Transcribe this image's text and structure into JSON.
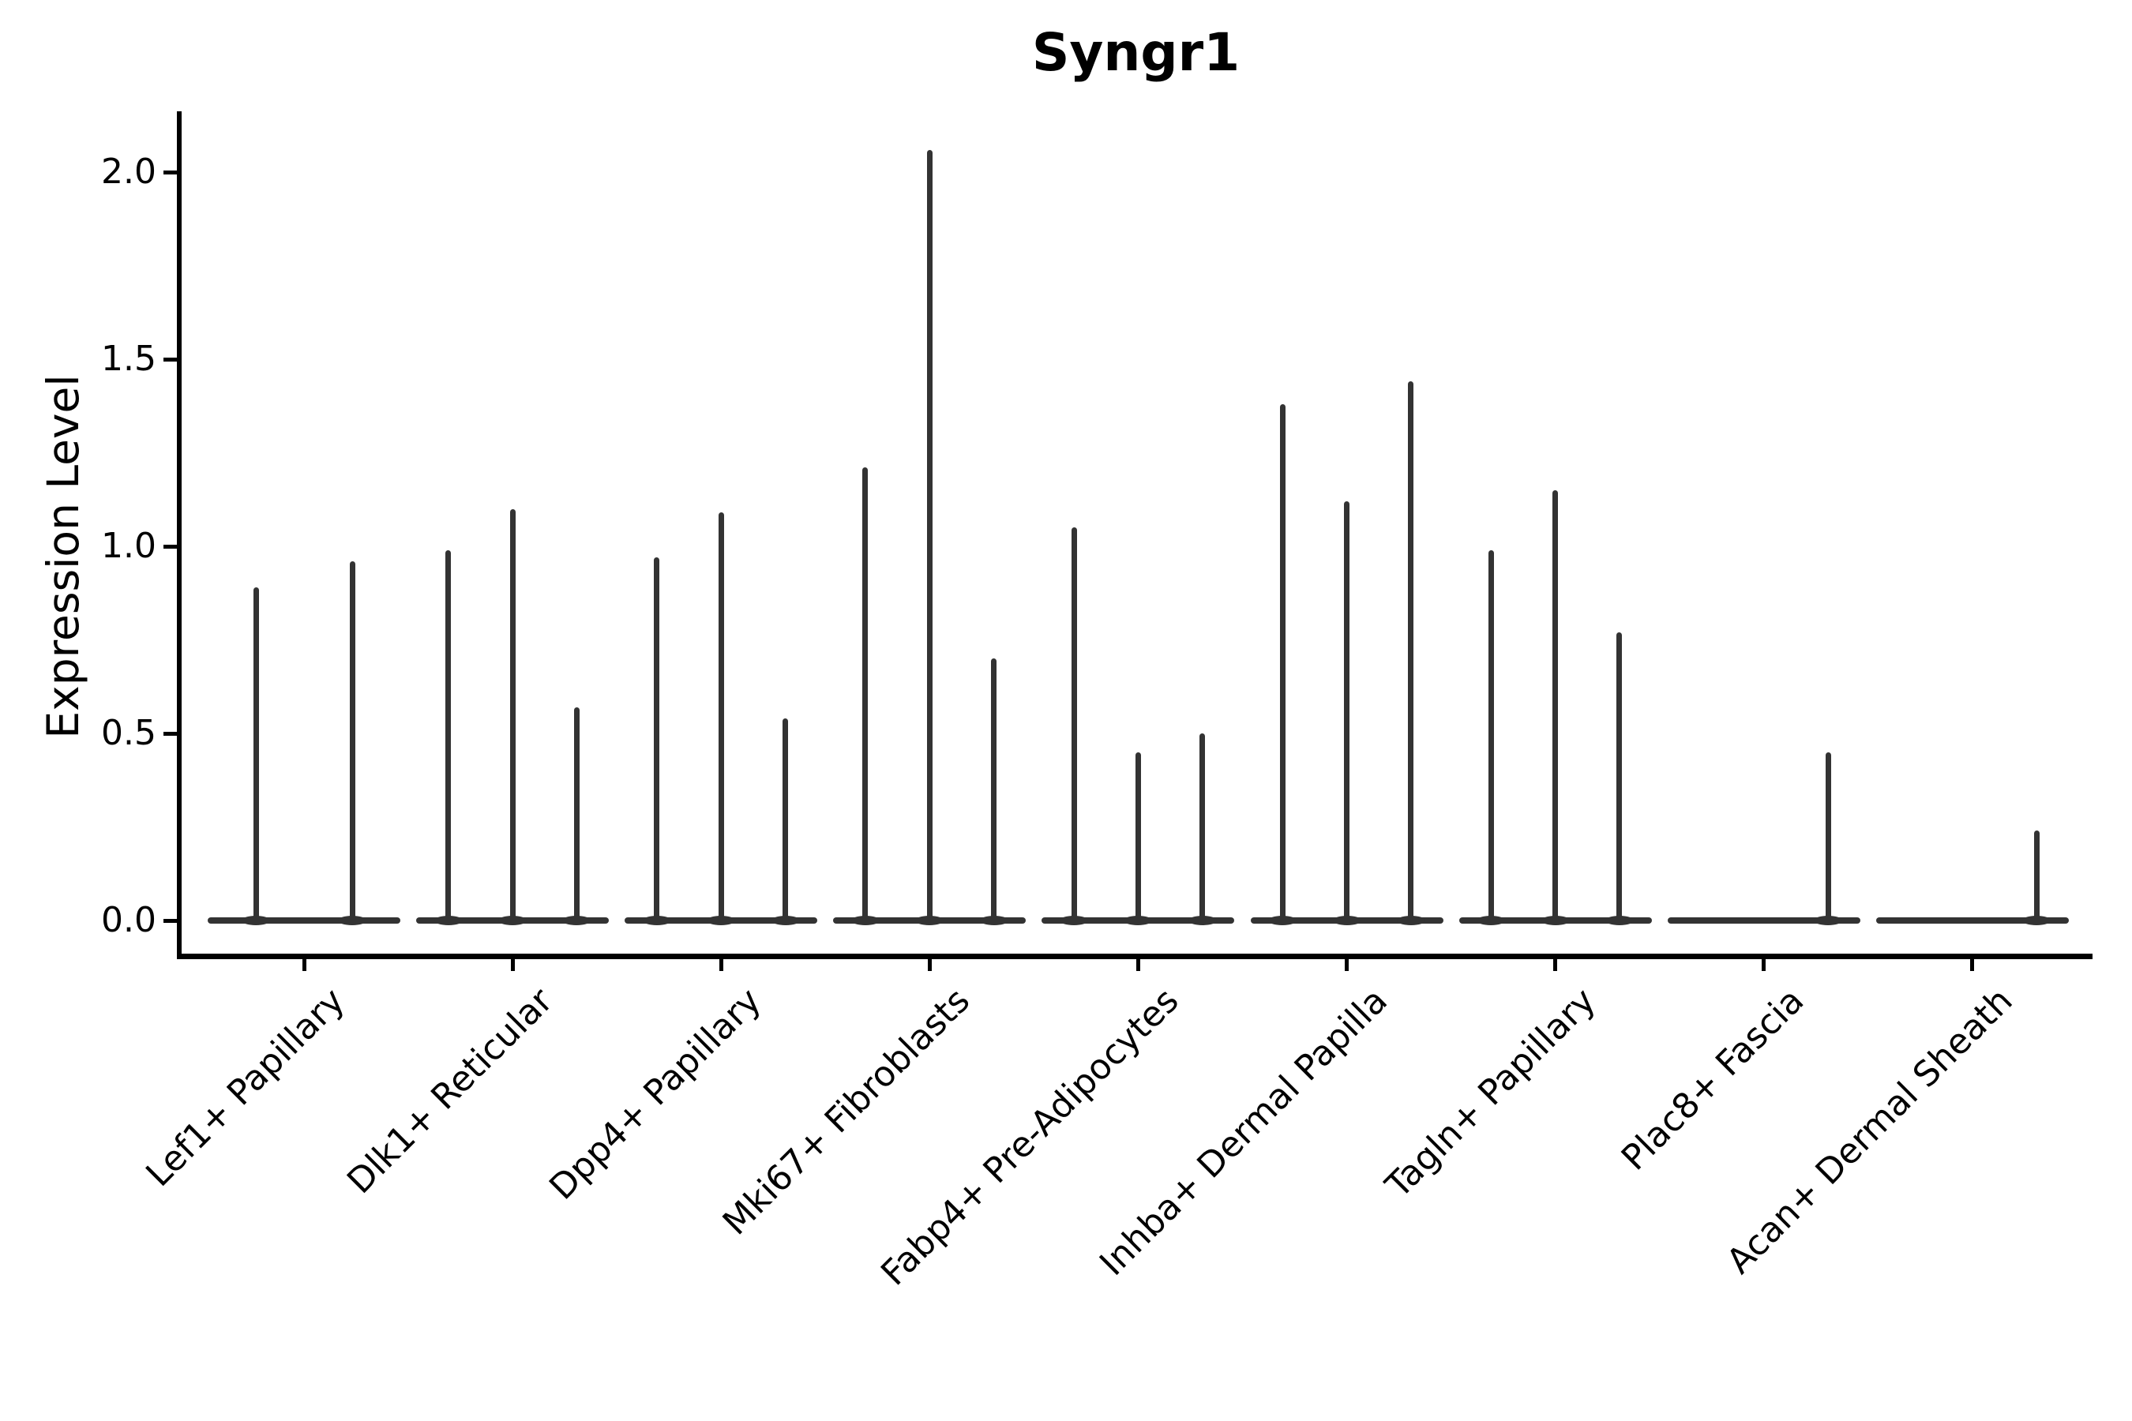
{
  "title": "Syngr1",
  "y_axis": {
    "label": "Expression Level",
    "tick_labels": [
      "2.0",
      "1.5",
      "1.0",
      "0.5",
      "0.0"
    ],
    "tick_values": [
      2.0,
      1.5,
      1.0,
      0.5,
      0.0
    ]
  },
  "colors": {
    "violin": "#333333",
    "axis": "#000000",
    "text": "#000000",
    "background": "#ffffff"
  },
  "chart_data": {
    "type": "violin",
    "title": "Syngr1",
    "xlabel": "",
    "ylabel": "Expression Level",
    "ylim": [
      0,
      2.16
    ],
    "yticks": [
      0.0,
      0.5,
      1.0,
      1.5,
      2.0
    ],
    "grid": false,
    "legend": false,
    "note": "Collapsed violins: nearly all density at 0 (horizontal baseline per group) with thin spikes reaching each violin's maximum expression value",
    "categories": [
      "Lef1+ Papillary",
      "Dlk1+ Reticular",
      "Dpp4+ Papillary",
      "Mki67+ Fibroblasts",
      "Fabp4+ Pre-Adipocytes",
      "Inhba+ Dermal Papilla",
      "Tagln+ Papillary",
      "Plac8+ Fascia",
      "Acan+ Dermal Sheath"
    ],
    "groups": [
      {
        "category": "Lef1+ Papillary",
        "violins": [
          {
            "pos": 0.25,
            "max": 0.89
          },
          {
            "pos": 0.75,
            "max": 0.96
          }
        ]
      },
      {
        "category": "Dlk1+ Reticular",
        "violins": [
          {
            "pos": 0.1667,
            "max": 0.99
          },
          {
            "pos": 0.5,
            "max": 1.1
          },
          {
            "pos": 0.8333,
            "max": 0.57
          }
        ]
      },
      {
        "category": "Dpp4+ Papillary",
        "violins": [
          {
            "pos": 0.1667,
            "max": 0.97
          },
          {
            "pos": 0.5,
            "max": 1.09
          },
          {
            "pos": 0.8333,
            "max": 0.54
          }
        ]
      },
      {
        "category": "Mki67+ Fibroblasts",
        "violins": [
          {
            "pos": 0.1667,
            "max": 1.21
          },
          {
            "pos": 0.5,
            "max": 2.06
          },
          {
            "pos": 0.8333,
            "max": 0.7
          }
        ]
      },
      {
        "category": "Fabp4+ Pre-Adipocytes",
        "violins": [
          {
            "pos": 0.1667,
            "max": 1.05
          },
          {
            "pos": 0.5,
            "max": 0.45
          },
          {
            "pos": 0.8333,
            "max": 0.5
          }
        ]
      },
      {
        "category": "Inhba+ Dermal Papilla",
        "violins": [
          {
            "pos": 0.1667,
            "max": 1.38
          },
          {
            "pos": 0.5,
            "max": 1.12
          },
          {
            "pos": 0.8333,
            "max": 1.44
          }
        ]
      },
      {
        "category": "Tagln+ Papillary",
        "violins": [
          {
            "pos": 0.1667,
            "max": 0.99
          },
          {
            "pos": 0.5,
            "max": 1.15
          },
          {
            "pos": 0.8333,
            "max": 0.77
          }
        ]
      },
      {
        "category": "Plac8+ Fascia",
        "violins": [
          {
            "pos": 0.8333,
            "max": 0.45
          }
        ]
      },
      {
        "category": "Acan+ Dermal Sheath",
        "violins": [
          {
            "pos": 0.8333,
            "max": 0.24
          }
        ]
      }
    ]
  }
}
